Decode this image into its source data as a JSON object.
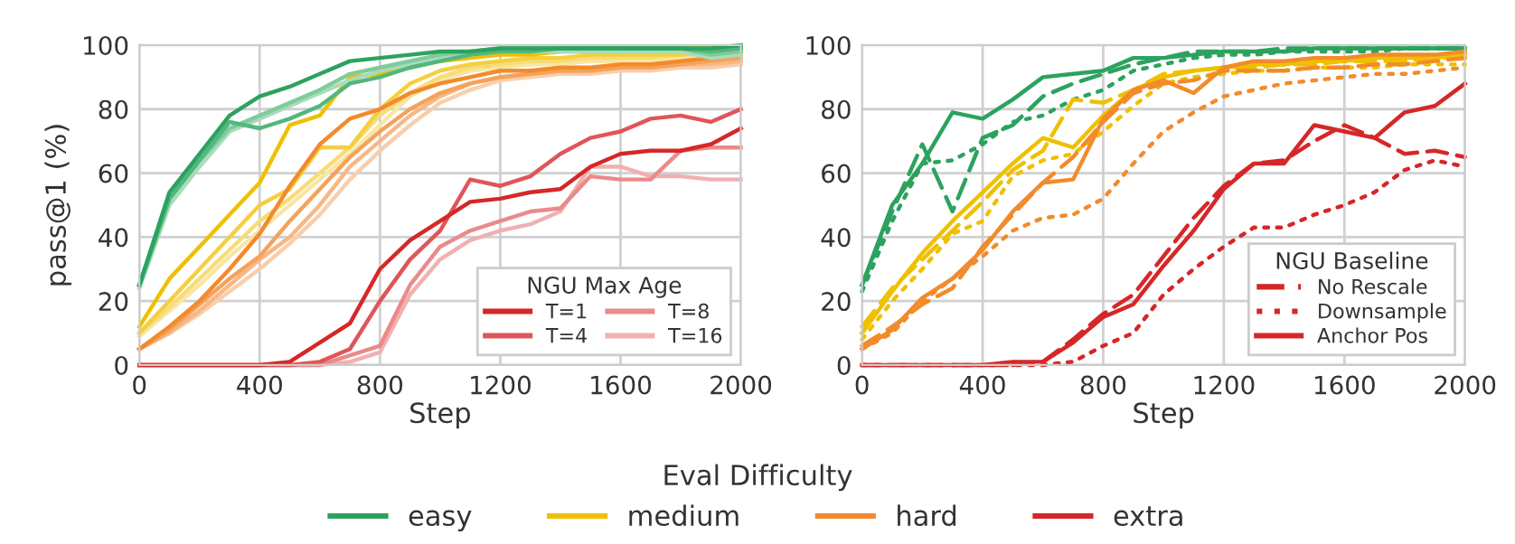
{
  "chart_data": [
    {
      "type": "line",
      "xlabel": "Step",
      "ylabel": "pass@1 (%)",
      "legend_title": "NGU Max Age",
      "legend": "bottom right",
      "grid": true,
      "x": [
        0,
        100,
        200,
        300,
        400,
        500,
        600,
        700,
        800,
        900,
        1000,
        1100,
        1200,
        1300,
        1400,
        1500,
        1600,
        1700,
        1800,
        1900,
        2000
      ],
      "xlim": [
        0,
        2000
      ],
      "xticks": [
        0,
        400,
        800,
        1200,
        1600,
        2000
      ],
      "ylim": [
        0,
        100
      ],
      "yticks": [
        0,
        20,
        40,
        60,
        80,
        100
      ],
      "series": [
        {
          "color": "#f9e6a4",
          "values": [
            9,
            17,
            25,
            34,
            42,
            50,
            58,
            66,
            75,
            84,
            89,
            92,
            93,
            94,
            94,
            95,
            95,
            95,
            96,
            96,
            96
          ]
        },
        {
          "color": "#f7dc78",
          "values": [
            10,
            18,
            27,
            36,
            45,
            52,
            60,
            68,
            78,
            85,
            90,
            93,
            94,
            95,
            95,
            96,
            96,
            96,
            97,
            97,
            97
          ]
        },
        {
          "color": "#f4cf40",
          "values": [
            10,
            20,
            30,
            40,
            50,
            55,
            68,
            68,
            80,
            88,
            92,
            94,
            95,
            96,
            96,
            97,
            97,
            97,
            97,
            98,
            98
          ]
        },
        {
          "color": "#efc000",
          "values": [
            12,
            27,
            37,
            47,
            57,
            75,
            78,
            90,
            91,
            93,
            95,
            96,
            97,
            97,
            98,
            98,
            98,
            99,
            99,
            99,
            99
          ]
        },
        {
          "color": "#f9ceab",
          "values": [
            5,
            10,
            16,
            23,
            30,
            38,
            47,
            58,
            67,
            75,
            82,
            86,
            89,
            90,
            91,
            91,
            92,
            92,
            93,
            93,
            94
          ]
        },
        {
          "color": "#f7b886",
          "values": [
            5,
            10,
            17,
            25,
            33,
            40,
            50,
            62,
            70,
            78,
            84,
            88,
            90,
            91,
            92,
            92,
            93,
            93,
            94,
            94,
            95
          ]
        },
        {
          "color": "#f5a25a",
          "values": [
            5,
            11,
            19,
            27,
            34,
            45,
            55,
            65,
            73,
            80,
            85,
            88,
            90,
            91,
            92,
            92,
            93,
            93,
            94,
            95,
            96
          ]
        },
        {
          "color": "#f28b2c",
          "values": [
            5,
            12,
            20,
            30,
            41,
            56,
            69,
            77,
            80,
            85,
            88,
            90,
            92,
            92,
            93,
            93,
            94,
            94,
            95,
            96,
            98
          ]
        },
        {
          "name": "T=16",
          "color": "#f1b0b0",
          "values": [
            0,
            0,
            0,
            0,
            0,
            0,
            0,
            1,
            4,
            22,
            33,
            39,
            42,
            44,
            48,
            62,
            62,
            59,
            59,
            58,
            58
          ]
        },
        {
          "name": "T=8",
          "color": "#ea8a8b",
          "values": [
            0,
            0,
            0,
            0,
            0,
            0,
            0,
            3,
            6,
            25,
            37,
            42,
            45,
            48,
            49,
            59,
            58,
            58,
            67,
            68,
            68
          ]
        },
        {
          "name": "T=4",
          "color": "#e05559",
          "values": [
            0,
            0,
            0,
            0,
            0,
            0,
            1,
            5,
            20,
            33,
            42,
            58,
            56,
            59,
            66,
            71,
            73,
            77,
            78,
            76,
            80
          ]
        },
        {
          "name": "T=1",
          "color": "#d62728",
          "values": [
            0,
            0,
            0,
            0,
            0,
            1,
            7,
            13,
            30,
            39,
            45,
            51,
            52,
            54,
            55,
            62,
            66,
            67,
            67,
            69,
            74
          ]
        },
        {
          "color": "#a8dcbb",
          "values": [
            24,
            50,
            62,
            73,
            77,
            81,
            85,
            89,
            92,
            94,
            96,
            97,
            98,
            98,
            98,
            98,
            98,
            98,
            98,
            96,
            97
          ]
        },
        {
          "color": "#7fcb9c",
          "values": [
            25,
            52,
            64,
            74,
            78,
            82,
            86,
            91,
            93,
            95,
            97,
            98,
            99,
            99,
            99,
            99,
            99,
            99,
            99,
            97,
            98
          ]
        },
        {
          "color": "#52b77d",
          "values": [
            25,
            52,
            64,
            76,
            74,
            77,
            81,
            88,
            90,
            93,
            95,
            97,
            98,
            98,
            99,
            99,
            99,
            99,
            99,
            98,
            99
          ]
        },
        {
          "color": "#2ca25f",
          "values": [
            25,
            54,
            66,
            78,
            84,
            87,
            91,
            95,
            96,
            97,
            98,
            98,
            99,
            99,
            99,
            99,
            99,
            99,
            99,
            99,
            100
          ]
        }
      ]
    },
    {
      "type": "line",
      "xlabel": "Step",
      "legend_title": "NGU Baseline",
      "legend": "bottom right",
      "grid": true,
      "x": [
        0,
        100,
        200,
        300,
        400,
        500,
        600,
        700,
        800,
        900,
        1000,
        1100,
        1200,
        1300,
        1400,
        1500,
        1600,
        1700,
        1800,
        1900,
        2000
      ],
      "xlim": [
        0,
        2000
      ],
      "xticks": [
        0,
        400,
        800,
        1200,
        1600,
        2000
      ],
      "ylim": [
        0,
        100
      ],
      "yticks": [
        0,
        20,
        40,
        60,
        80,
        100
      ],
      "series": [
        {
          "color": "#2ca25f",
          "line_style": "solid",
          "values": [
            25,
            50,
            63,
            79,
            77,
            83,
            90,
            91,
            92,
            96,
            96,
            97,
            98,
            98,
            98,
            99,
            99,
            99,
            99,
            99,
            99
          ]
        },
        {
          "color": "#2ca25f",
          "line_style": "dashed",
          "values": [
            25,
            48,
            69,
            48,
            71,
            75,
            84,
            88,
            91,
            94,
            96,
            98,
            98,
            98,
            99,
            99,
            99,
            99,
            99,
            99,
            99
          ]
        },
        {
          "color": "#2ca25f",
          "line_style": "dotted",
          "values": [
            23,
            45,
            63,
            64,
            69,
            76,
            78,
            83,
            86,
            92,
            94,
            96,
            97,
            97,
            98,
            98,
            98,
            98,
            99,
            99,
            99
          ]
        },
        {
          "color": "#efc000",
          "line_style": "solid",
          "values": [
            10,
            23,
            35,
            45,
            54,
            63,
            71,
            68,
            78,
            86,
            90,
            92,
            93,
            94,
            94,
            95,
            95,
            96,
            96,
            96,
            97
          ]
        },
        {
          "color": "#efc000",
          "line_style": "dashed",
          "values": [
            12,
            24,
            33,
            42,
            51,
            61,
            67,
            83,
            82,
            86,
            91,
            92,
            93,
            93,
            94,
            94,
            95,
            95,
            95,
            96,
            96
          ]
        },
        {
          "color": "#efc000",
          "line_style": "dotted",
          "values": [
            8,
            20,
            30,
            41,
            45,
            59,
            64,
            66,
            73,
            81,
            88,
            90,
            91,
            92,
            92,
            93,
            93,
            93,
            94,
            94,
            94
          ]
        },
        {
          "color": "#f28b2c",
          "line_style": "solid",
          "values": [
            5,
            11,
            21,
            27,
            36,
            48,
            57,
            58,
            77,
            86,
            89,
            85,
            93,
            95,
            95,
            96,
            96,
            97,
            97,
            97,
            98
          ]
        },
        {
          "color": "#f28b2c",
          "line_style": "dashed",
          "values": [
            6,
            12,
            19,
            24,
            37,
            47,
            57,
            65,
            76,
            85,
            88,
            89,
            92,
            92,
            92,
            93,
            93,
            94,
            94,
            95,
            96
          ]
        },
        {
          "color": "#f28b2c",
          "line_style": "dotted",
          "values": [
            5,
            10,
            20,
            27,
            34,
            42,
            46,
            47,
            52,
            63,
            73,
            79,
            84,
            86,
            88,
            89,
            90,
            91,
            91,
            92,
            93
          ]
        },
        {
          "name": "No Rescale",
          "color": "#d62728",
          "line_style": "dashed",
          "values": [
            0,
            0,
            0,
            0,
            0,
            0,
            1,
            8,
            16,
            22,
            34,
            46,
            56,
            63,
            64,
            70,
            75,
            71,
            66,
            67,
            65
          ]
        },
        {
          "name": "Downsample",
          "color": "#d62728",
          "line_style": "dotted",
          "values": [
            0,
            0,
            0,
            0,
            0,
            0,
            0,
            1,
            6,
            10,
            22,
            30,
            37,
            43,
            43,
            47,
            50,
            54,
            61,
            64,
            62
          ]
        },
        {
          "name": "Anchor Pos",
          "color": "#d62728",
          "line_style": "solid",
          "values": [
            0,
            0,
            0,
            0,
            0,
            1,
            1,
            7,
            15,
            19,
            31,
            42,
            55,
            63,
            63,
            75,
            73,
            71,
            79,
            81,
            88
          ]
        }
      ]
    },
    {
      "type": "other",
      "legend_title": "Eval Difficulty",
      "categories": [
        "easy",
        "medium",
        "hard",
        "extra"
      ],
      "colors": [
        "#2ca25f",
        "#efc000",
        "#f28b2c",
        "#d62728"
      ]
    }
  ]
}
